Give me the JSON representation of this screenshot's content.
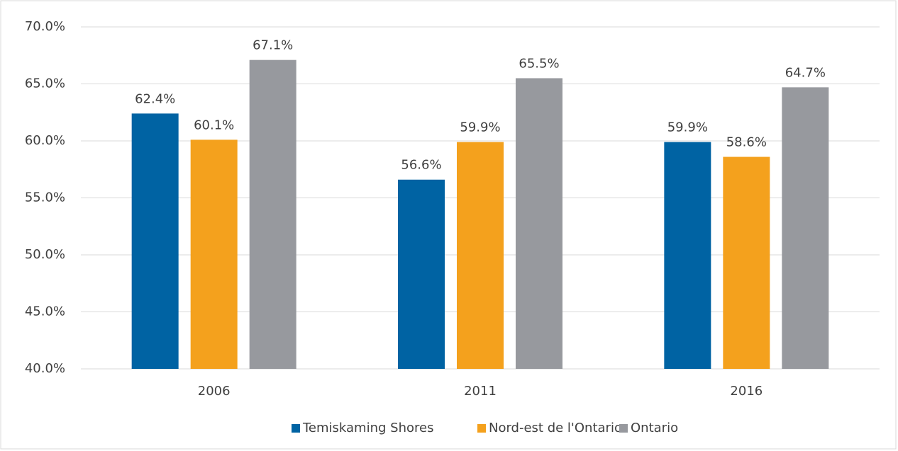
{
  "chart_data": {
    "type": "bar",
    "categories": [
      "2006",
      "2011",
      "2016"
    ],
    "series": [
      {
        "name": "Temiskaming Shores",
        "color": "#0063a3",
        "values": [
          62.4,
          56.6,
          59.9
        ],
        "value_labels": [
          "62.4%",
          "56.6%",
          "59.9%"
        ]
      },
      {
        "name": "Nord-est de l'Ontario",
        "color": "#f4a11d",
        "values": [
          60.1,
          59.9,
          58.6
        ],
        "value_labels": [
          "60.1%",
          "59.9%",
          "58.6%"
        ]
      },
      {
        "name": "Ontario",
        "color": "#97999e",
        "values": [
          67.1,
          65.5,
          64.7
        ],
        "value_labels": [
          "67.1%",
          "65.5%",
          "64.7%"
        ]
      }
    ],
    "ylim": [
      40,
      70
    ],
    "yticks": [
      {
        "value": 40,
        "label": "40.0%"
      },
      {
        "value": 45,
        "label": "45.0%"
      },
      {
        "value": 50,
        "label": "50.0%"
      },
      {
        "value": 55,
        "label": "55.0%"
      },
      {
        "value": 60,
        "label": "60.0%"
      },
      {
        "value": 65,
        "label": "65.0%"
      },
      {
        "value": 70,
        "label": "70.0%"
      }
    ],
    "grid": true,
    "legend": "bottom"
  }
}
